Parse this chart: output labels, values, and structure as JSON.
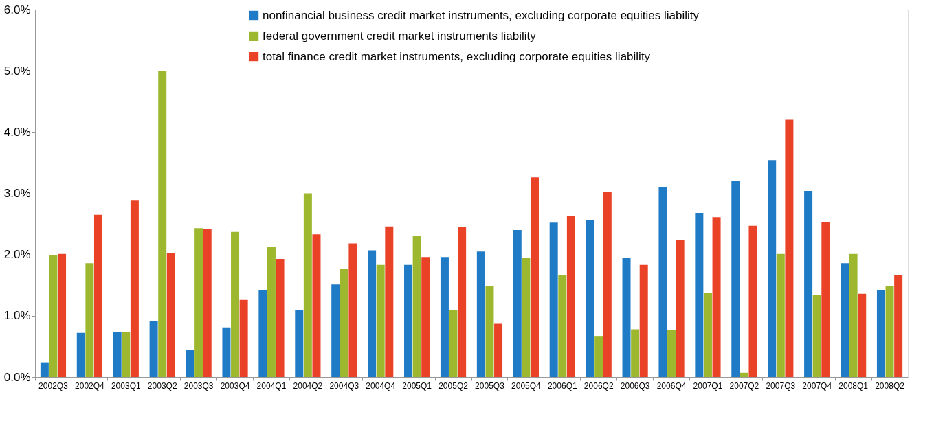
{
  "chart_data": {
    "type": "bar",
    "categories": [
      "2002Q3",
      "2002Q4",
      "2003Q1",
      "2003Q2",
      "2003Q3",
      "2003Q4",
      "2004Q1",
      "2004Q2",
      "2004Q3",
      "2004Q4",
      "2005Q1",
      "2005Q2",
      "2005Q3",
      "2005Q4",
      "2006Q1",
      "2006Q2",
      "2006Q3",
      "2006Q4",
      "2007Q1",
      "2007Q2",
      "2007Q3",
      "2007Q4",
      "2008Q1",
      "2008Q2"
    ],
    "series": [
      {
        "name": "nonfinancial business credit market instruments, excluding corporate equities liability",
        "color": "#1f7bc6",
        "values": [
          0.24,
          0.72,
          0.73,
          0.91,
          0.44,
          0.81,
          1.42,
          1.09,
          1.51,
          2.07,
          1.83,
          1.96,
          2.05,
          2.4,
          2.52,
          2.56,
          1.94,
          3.1,
          2.68,
          3.2,
          3.54,
          3.04,
          1.86,
          1.42
        ]
      },
      {
        "name": "federal government credit market instruments liability",
        "color": "#9db82f",
        "values": [
          1.99,
          1.86,
          0.73,
          4.99,
          2.43,
          2.37,
          2.13,
          3.0,
          1.76,
          1.83,
          2.3,
          1.1,
          1.49,
          1.95,
          1.66,
          0.66,
          0.78,
          0.77,
          1.38,
          0.07,
          2.01,
          1.34,
          2.01,
          1.49
        ]
      },
      {
        "name": "total finance credit market instruments, excluding corporate equities liability",
        "color": "#ea4227",
        "values": [
          2.01,
          2.65,
          2.89,
          2.03,
          2.41,
          1.26,
          1.93,
          2.33,
          2.18,
          2.46,
          1.96,
          2.45,
          0.87,
          3.26,
          2.63,
          3.02,
          1.83,
          2.24,
          2.61,
          2.47,
          4.2,
          2.53,
          1.36,
          1.66
        ]
      }
    ],
    "ylim": [
      0,
      6
    ],
    "yticks": [
      {
        "value": 0,
        "label": "0.0%"
      },
      {
        "value": 1,
        "label": "1.0%"
      },
      {
        "value": 2,
        "label": "2.0%"
      },
      {
        "value": 3,
        "label": "3.0%"
      },
      {
        "value": 4,
        "label": "4.0%"
      },
      {
        "value": 5,
        "label": "5.0%"
      },
      {
        "value": 6,
        "label": "6.0%"
      }
    ],
    "grid": false,
    "legend": "top"
  }
}
